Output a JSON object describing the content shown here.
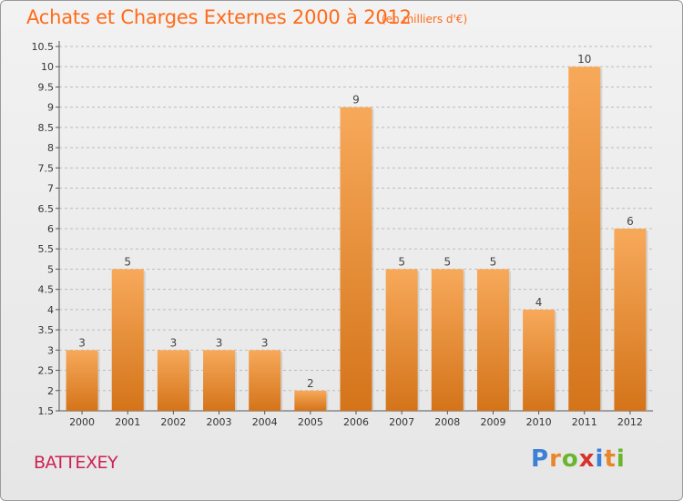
{
  "header": {
    "title": "Achats et Charges Externes 2000 à 2012",
    "subtitle": "(en milliers d'€)"
  },
  "footer": {
    "place": "BATTEXEY",
    "logo": "Proxiti",
    "logo_colors": [
      "#3b7fd6",
      "#e8872a",
      "#6bb52e",
      "#d6332c",
      "#3b7fd6",
      "#e8872a",
      "#6bb52e"
    ]
  },
  "chart_data": {
    "type": "bar",
    "categories": [
      "2000",
      "2001",
      "2002",
      "2003",
      "2004",
      "2005",
      "2006",
      "2007",
      "2008",
      "2009",
      "2010",
      "2011",
      "2012"
    ],
    "values": [
      3,
      5,
      3,
      3,
      3,
      2,
      9,
      5,
      5,
      5,
      4,
      10,
      6
    ],
    "data_labels": [
      "3",
      "5",
      "3",
      "3",
      "3",
      "2",
      "9",
      "5",
      "5",
      "5",
      "4",
      "10",
      "6"
    ],
    "y_ticks": [
      "1.5",
      "2",
      "2.5",
      "3",
      "3.5",
      "4",
      "4.5",
      "5",
      "5.5",
      "6",
      "6.5",
      "7",
      "7.5",
      "8",
      "8.5",
      "9",
      "9.5",
      "10",
      "10.5"
    ],
    "ylim": [
      1.5,
      10.5
    ],
    "grid": "horizontal dashed",
    "bar_color_top": "#f7a95a",
    "bar_color_bottom": "#d4741a",
    "axis_color": "#555555",
    "grid_color": "#bbbbbb"
  }
}
